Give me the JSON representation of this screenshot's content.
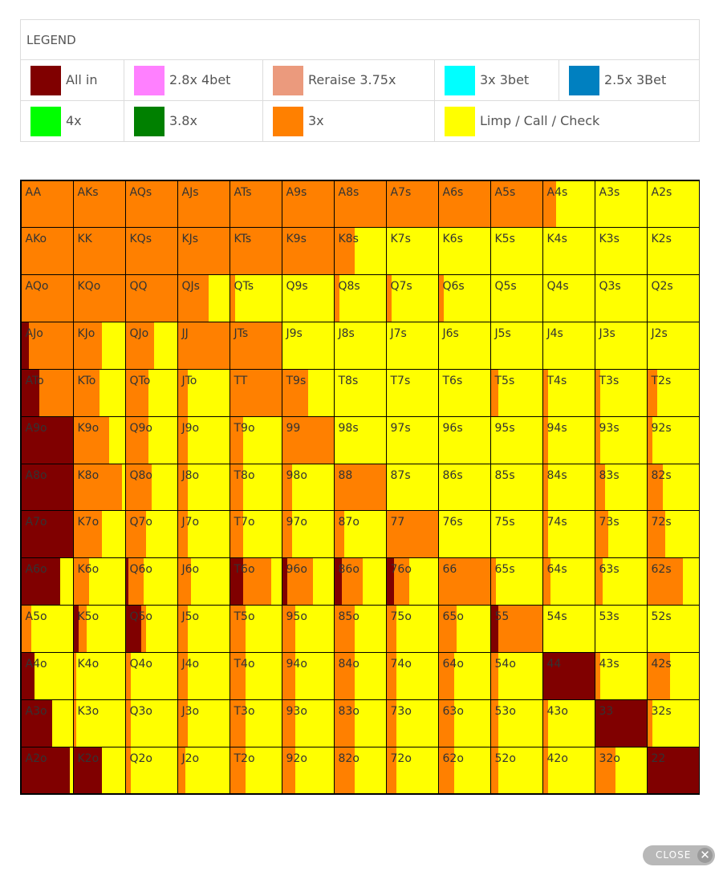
{
  "legend": {
    "title": "LEGEND",
    "items": [
      {
        "label": "All in",
        "color": "#800000"
      },
      {
        "label": "2.8x 4bet",
        "color": "#ff80ff"
      },
      {
        "label": "Reraise 3.75x",
        "color": "#eb9a7d"
      },
      {
        "label": "3x 3bet",
        "color": "#00ffff"
      },
      {
        "label": "2.5x 3Bet",
        "color": "#0080c0"
      },
      {
        "label": "4x",
        "color": "#00ff00"
      },
      {
        "label": "3.8x",
        "color": "#008000"
      },
      {
        "label": "3x",
        "color": "#ff8000"
      },
      {
        "label": "Limp / Call / Check",
        "color": "#ffff00"
      }
    ]
  },
  "colors": {
    "allin": "#800000",
    "raise3x": "#ff8000",
    "limp": "#ffff00"
  },
  "grid": {
    "hands": [
      [
        "AA",
        "AKs",
        "AQs",
        "AJs",
        "ATs",
        "A9s",
        "A8s",
        "A7s",
        "A6s",
        "A5s",
        "A4s",
        "A3s",
        "A2s"
      ],
      [
        "AKo",
        "KK",
        "KQs",
        "KJs",
        "KTs",
        "K9s",
        "K8s",
        "K7s",
        "K6s",
        "K5s",
        "K4s",
        "K3s",
        "K2s"
      ],
      [
        "AQo",
        "KQo",
        "QQ",
        "QJs",
        "QTs",
        "Q9s",
        "Q8s",
        "Q7s",
        "Q6s",
        "Q5s",
        "Q4s",
        "Q3s",
        "Q2s"
      ],
      [
        "AJo",
        "KJo",
        "QJo",
        "JJ",
        "JTs",
        "J9s",
        "J8s",
        "J7s",
        "J6s",
        "J5s",
        "J4s",
        "J3s",
        "J2s"
      ],
      [
        "ATo",
        "KTo",
        "QTo",
        "JTo",
        "TT",
        "T9s",
        "T8s",
        "T7s",
        "T6s",
        "T5s",
        "T4s",
        "T3s",
        "T2s"
      ],
      [
        "A9o",
        "K9o",
        "Q9o",
        "J9o",
        "T9o",
        "99",
        "98s",
        "97s",
        "96s",
        "95s",
        "94s",
        "93s",
        "92s"
      ],
      [
        "A8o",
        "K8o",
        "Q8o",
        "J8o",
        "T8o",
        "98o",
        "88",
        "87s",
        "86s",
        "85s",
        "84s",
        "83s",
        "82s"
      ],
      [
        "A7o",
        "K7o",
        "Q7o",
        "J7o",
        "T7o",
        "97o",
        "87o",
        "77",
        "76s",
        "75s",
        "74s",
        "73s",
        "72s"
      ],
      [
        "A6o",
        "K6o",
        "Q6o",
        "J6o",
        "T6o",
        "96o",
        "86o",
        "76o",
        "66",
        "65s",
        "64s",
        "63s",
        "62s"
      ],
      [
        "A5o",
        "K5o",
        "Q5o",
        "J5o",
        "T5o",
        "95o",
        "85o",
        "75o",
        "65o",
        "55",
        "54s",
        "53s",
        "52s"
      ],
      [
        "A4o",
        "K4o",
        "Q4o",
        "J4o",
        "T4o",
        "94o",
        "84o",
        "74o",
        "64o",
        "54o",
        "44",
        "43s",
        "42s"
      ],
      [
        "A3o",
        "K3o",
        "Q3o",
        "J3o",
        "T3o",
        "93o",
        "83o",
        "73o",
        "63o",
        "53o",
        "43o",
        "33",
        "32s"
      ],
      [
        "A2o",
        "K2o",
        "Q2o",
        "J2o",
        "T2o",
        "92o",
        "82o",
        "72o",
        "62o",
        "52o",
        "42o",
        "32o",
        "22"
      ]
    ],
    "mix": [
      [
        [
          0,
          1,
          0
        ],
        [
          0,
          1,
          0
        ],
        [
          0,
          1,
          0
        ],
        [
          0,
          1,
          0
        ],
        [
          0,
          1,
          0
        ],
        [
          0,
          1,
          0
        ],
        [
          0,
          1,
          0
        ],
        [
          0,
          1,
          0
        ],
        [
          0,
          1,
          0
        ],
        [
          0,
          1,
          0
        ],
        [
          0,
          0.25,
          0.75
        ],
        [
          0,
          0,
          1
        ],
        [
          0,
          0,
          1
        ]
      ],
      [
        [
          0,
          1,
          0
        ],
        [
          0,
          1,
          0
        ],
        [
          0,
          1,
          0
        ],
        [
          0,
          1,
          0
        ],
        [
          0,
          1,
          0
        ],
        [
          0,
          1,
          0
        ],
        [
          0,
          0.4,
          0.6
        ],
        [
          0,
          0,
          1
        ],
        [
          0,
          0,
          1
        ],
        [
          0,
          0,
          1
        ],
        [
          0,
          0,
          1
        ],
        [
          0,
          0,
          1
        ],
        [
          0,
          0,
          1
        ]
      ],
      [
        [
          0,
          1,
          0
        ],
        [
          0,
          1,
          0
        ],
        [
          0,
          1,
          0
        ],
        [
          0,
          0.6,
          0.4
        ],
        [
          0,
          0.1,
          0.9
        ],
        [
          0,
          0,
          1
        ],
        [
          0,
          0.1,
          0.9
        ],
        [
          0,
          0.1,
          0.9
        ],
        [
          0,
          0.1,
          0.9
        ],
        [
          0,
          0,
          1
        ],
        [
          0,
          0,
          1
        ],
        [
          0,
          0,
          1
        ],
        [
          0,
          0,
          1
        ]
      ],
      [
        [
          0.15,
          0.85,
          0
        ],
        [
          0,
          0.55,
          0.45
        ],
        [
          0,
          0.55,
          0.45
        ],
        [
          0,
          1,
          0
        ],
        [
          0,
          1,
          0
        ],
        [
          0,
          0,
          1
        ],
        [
          0,
          0,
          1
        ],
        [
          0,
          0,
          1
        ],
        [
          0,
          0,
          1
        ],
        [
          0,
          0,
          1
        ],
        [
          0,
          0,
          1
        ],
        [
          0,
          0,
          1
        ],
        [
          0,
          0,
          1
        ]
      ],
      [
        [
          0.35,
          0.65,
          0
        ],
        [
          0,
          0.5,
          0.5
        ],
        [
          0,
          0.45,
          0.55
        ],
        [
          0,
          0.2,
          0.8
        ],
        [
          0,
          1,
          0
        ],
        [
          0,
          0.5,
          0.5
        ],
        [
          0,
          0,
          1
        ],
        [
          0,
          0,
          1
        ],
        [
          0,
          0,
          1
        ],
        [
          0,
          0.15,
          0.85
        ],
        [
          0,
          0.1,
          0.9
        ],
        [
          0,
          0.1,
          0.9
        ],
        [
          0,
          0.2,
          0.8
        ]
      ],
      [
        [
          1,
          0,
          0
        ],
        [
          0,
          0.7,
          0.3
        ],
        [
          0,
          0.45,
          0.55
        ],
        [
          0,
          0.2,
          0.8
        ],
        [
          0,
          0.25,
          0.75
        ],
        [
          0,
          1,
          0
        ],
        [
          0,
          0,
          1
        ],
        [
          0,
          0,
          1
        ],
        [
          0,
          0,
          1
        ],
        [
          0,
          0,
          1
        ],
        [
          0,
          0.1,
          0.9
        ],
        [
          0,
          0.1,
          0.9
        ],
        [
          0,
          0.1,
          0.9
        ]
      ],
      [
        [
          1,
          0,
          0
        ],
        [
          0,
          0.95,
          0.05
        ],
        [
          0,
          0.5,
          0.5
        ],
        [
          0,
          0.2,
          0.8
        ],
        [
          0,
          0.25,
          0.75
        ],
        [
          0,
          0.2,
          0.8
        ],
        [
          0,
          1,
          0
        ],
        [
          0,
          0,
          1
        ],
        [
          0,
          0,
          1
        ],
        [
          0,
          0,
          1
        ],
        [
          0,
          0.1,
          0.9
        ],
        [
          0,
          0.2,
          0.8
        ],
        [
          0,
          0.3,
          0.7
        ]
      ],
      [
        [
          1,
          0,
          0
        ],
        [
          0,
          0.55,
          0.45
        ],
        [
          0,
          0.4,
          0.6
        ],
        [
          0,
          0.2,
          0.8
        ],
        [
          0,
          0.25,
          0.75
        ],
        [
          0,
          0.2,
          0.8
        ],
        [
          0,
          0.2,
          0.8
        ],
        [
          0,
          1,
          0
        ],
        [
          0,
          0,
          1
        ],
        [
          0,
          0,
          1
        ],
        [
          0,
          0.1,
          0.9
        ],
        [
          0,
          0.25,
          0.75
        ],
        [
          0,
          0.35,
          0.65
        ]
      ],
      [
        [
          0.75,
          0,
          0.25
        ],
        [
          0,
          0.3,
          0.7
        ],
        [
          0.05,
          0.3,
          0.65
        ],
        [
          0,
          0.25,
          0.75
        ],
        [
          0.25,
          0.55,
          0.2
        ],
        [
          0.1,
          0.5,
          0.4
        ],
        [
          0.15,
          0.4,
          0.45
        ],
        [
          0.15,
          0.3,
          0.55
        ],
        [
          0,
          1,
          0
        ],
        [
          0,
          0.1,
          0.9
        ],
        [
          0,
          0.15,
          0.85
        ],
        [
          0,
          0.15,
          0.85
        ],
        [
          0,
          0.7,
          0.3
        ]
      ],
      [
        [
          0,
          0.2,
          0.8
        ],
        [
          0.1,
          0.15,
          0.75
        ],
        [
          0.3,
          0.1,
          0.6
        ],
        [
          0,
          0.2,
          0.8
        ],
        [
          0,
          0.3,
          0.7
        ],
        [
          0,
          0.25,
          0.75
        ],
        [
          0,
          0.4,
          0.6
        ],
        [
          0,
          0.2,
          0.8
        ],
        [
          0,
          0.35,
          0.65
        ],
        [
          0.15,
          0.85,
          0
        ],
        [
          0,
          0,
          1
        ],
        [
          0,
          0,
          1
        ],
        [
          0,
          0,
          1
        ]
      ],
      [
        [
          0.25,
          0,
          0.75
        ],
        [
          0,
          0.05,
          0.95
        ],
        [
          0,
          0.1,
          0.9
        ],
        [
          0,
          0.2,
          0.8
        ],
        [
          0,
          0.3,
          0.7
        ],
        [
          0,
          0.25,
          0.75
        ],
        [
          0,
          0.4,
          0.6
        ],
        [
          0,
          0.2,
          0.8
        ],
        [
          0,
          0.3,
          0.7
        ],
        [
          0,
          0.15,
          0.85
        ],
        [
          1,
          0,
          0
        ],
        [
          0,
          0.1,
          0.9
        ],
        [
          0,
          0.45,
          0.55
        ]
      ],
      [
        [
          0.6,
          0,
          0.4
        ],
        [
          0,
          0.05,
          0.95
        ],
        [
          0,
          0.1,
          0.9
        ],
        [
          0,
          0.2,
          0.8
        ],
        [
          0,
          0.3,
          0.7
        ],
        [
          0,
          0.25,
          0.75
        ],
        [
          0,
          0.4,
          0.6
        ],
        [
          0,
          0.2,
          0.8
        ],
        [
          0,
          0.3,
          0.7
        ],
        [
          0,
          0.15,
          0.85
        ],
        [
          0,
          0.1,
          0.9
        ],
        [
          1,
          0,
          0
        ],
        [
          0,
          0.1,
          0.9
        ]
      ],
      [
        [
          0.95,
          0,
          0.05
        ],
        [
          0.55,
          0,
          0.45
        ],
        [
          0,
          0.1,
          0.9
        ],
        [
          0,
          0.15,
          0.85
        ],
        [
          0,
          0.3,
          0.7
        ],
        [
          0,
          0.25,
          0.75
        ],
        [
          0,
          0.4,
          0.6
        ],
        [
          0,
          0.2,
          0.8
        ],
        [
          0,
          0.3,
          0.7
        ],
        [
          0,
          0.15,
          0.85
        ],
        [
          0,
          0.1,
          0.9
        ],
        [
          0,
          0.4,
          0.6
        ],
        [
          1,
          0,
          0
        ]
      ]
    ]
  },
  "close_button": {
    "label": "CLOSE",
    "icon": "close-icon"
  }
}
